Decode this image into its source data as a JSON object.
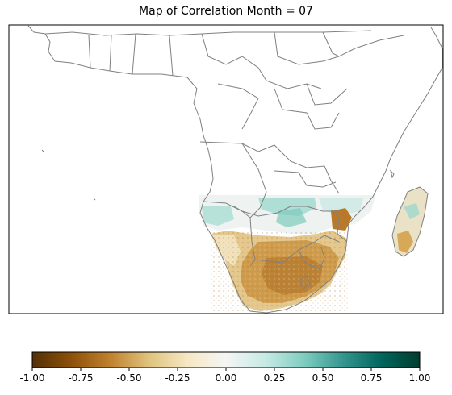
{
  "title": "Map of Correlation Month = 07",
  "colormap": {
    "name": "BrBG",
    "stops": [
      "#543005",
      "#8c510a",
      "#bf812d",
      "#dfc27d",
      "#f6e8c3",
      "#f5f5f5",
      "#c7eae5",
      "#80cdc1",
      "#35978f",
      "#01665e",
      "#003c30"
    ]
  },
  "colorbar": {
    "range": [
      -1.0,
      1.0
    ],
    "ticks": [
      "-1.00",
      "-0.75",
      "-0.50",
      "-0.25",
      "0.00",
      "0.25",
      "0.50",
      "0.75",
      "1.00"
    ]
  },
  "map": {
    "region": "Africa (southern half shaded)",
    "border_color": "#808080",
    "frame_color": "#000000"
  }
}
